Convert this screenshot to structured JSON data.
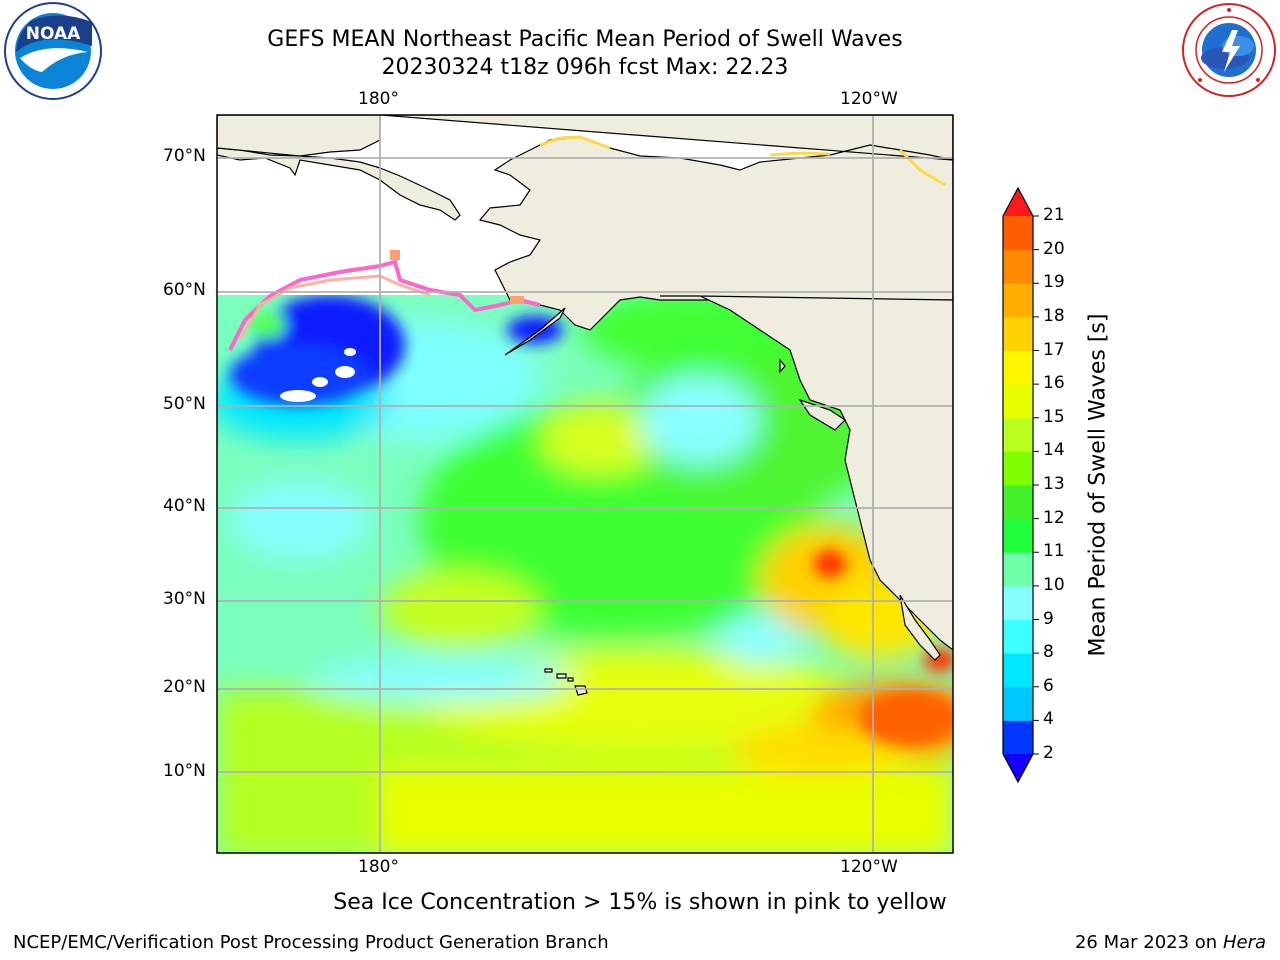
{
  "title": {
    "line1": "GEFS MEAN Northeast Pacific Mean Period of Swell Waves",
    "line2": "20230324 t18z 096h fcst   Max: 22.23"
  },
  "map": {
    "lon_labels_top": [
      "180°",
      "120°W"
    ],
    "lon_labels_bottom": [
      "180°",
      "120°W"
    ],
    "lat_labels": [
      "70°N",
      "60°N",
      "50°N",
      "40°N",
      "30°N",
      "20°N",
      "10°N"
    ],
    "land_color": "#efedde",
    "grid_color": "#b0b0b0"
  },
  "colorbar": {
    "label": "Mean Period of Swell Waves [s]",
    "ticks": [
      "2",
      "4",
      "6",
      "8",
      "9",
      "10",
      "11",
      "12",
      "13",
      "14",
      "15",
      "16",
      "17",
      "18",
      "19",
      "20",
      "21"
    ],
    "colors": [
      "#0037ff",
      "#00c6ff",
      "#00e8ff",
      "#3bffff",
      "#86ffff",
      "#6fffa8",
      "#1fff3c",
      "#44f22c",
      "#7fff00",
      "#b9ff1d",
      "#e8ff00",
      "#fff500",
      "#ffd200",
      "#ffae00",
      "#ff8a00",
      "#ff5e00",
      "#ff2a00"
    ],
    "under_color": "#1400ff",
    "over_color": "#ff1a1a"
  },
  "footer": {
    "note": "Sea Ice Concentration > 15% is shown in pink to yellow",
    "credit": "NCEP/EMC/Verification Post Processing Product Generation Branch",
    "date": "26 Mar 2023 on",
    "host": "Hera"
  },
  "logos": {
    "noaa_text": "NOAA"
  }
}
